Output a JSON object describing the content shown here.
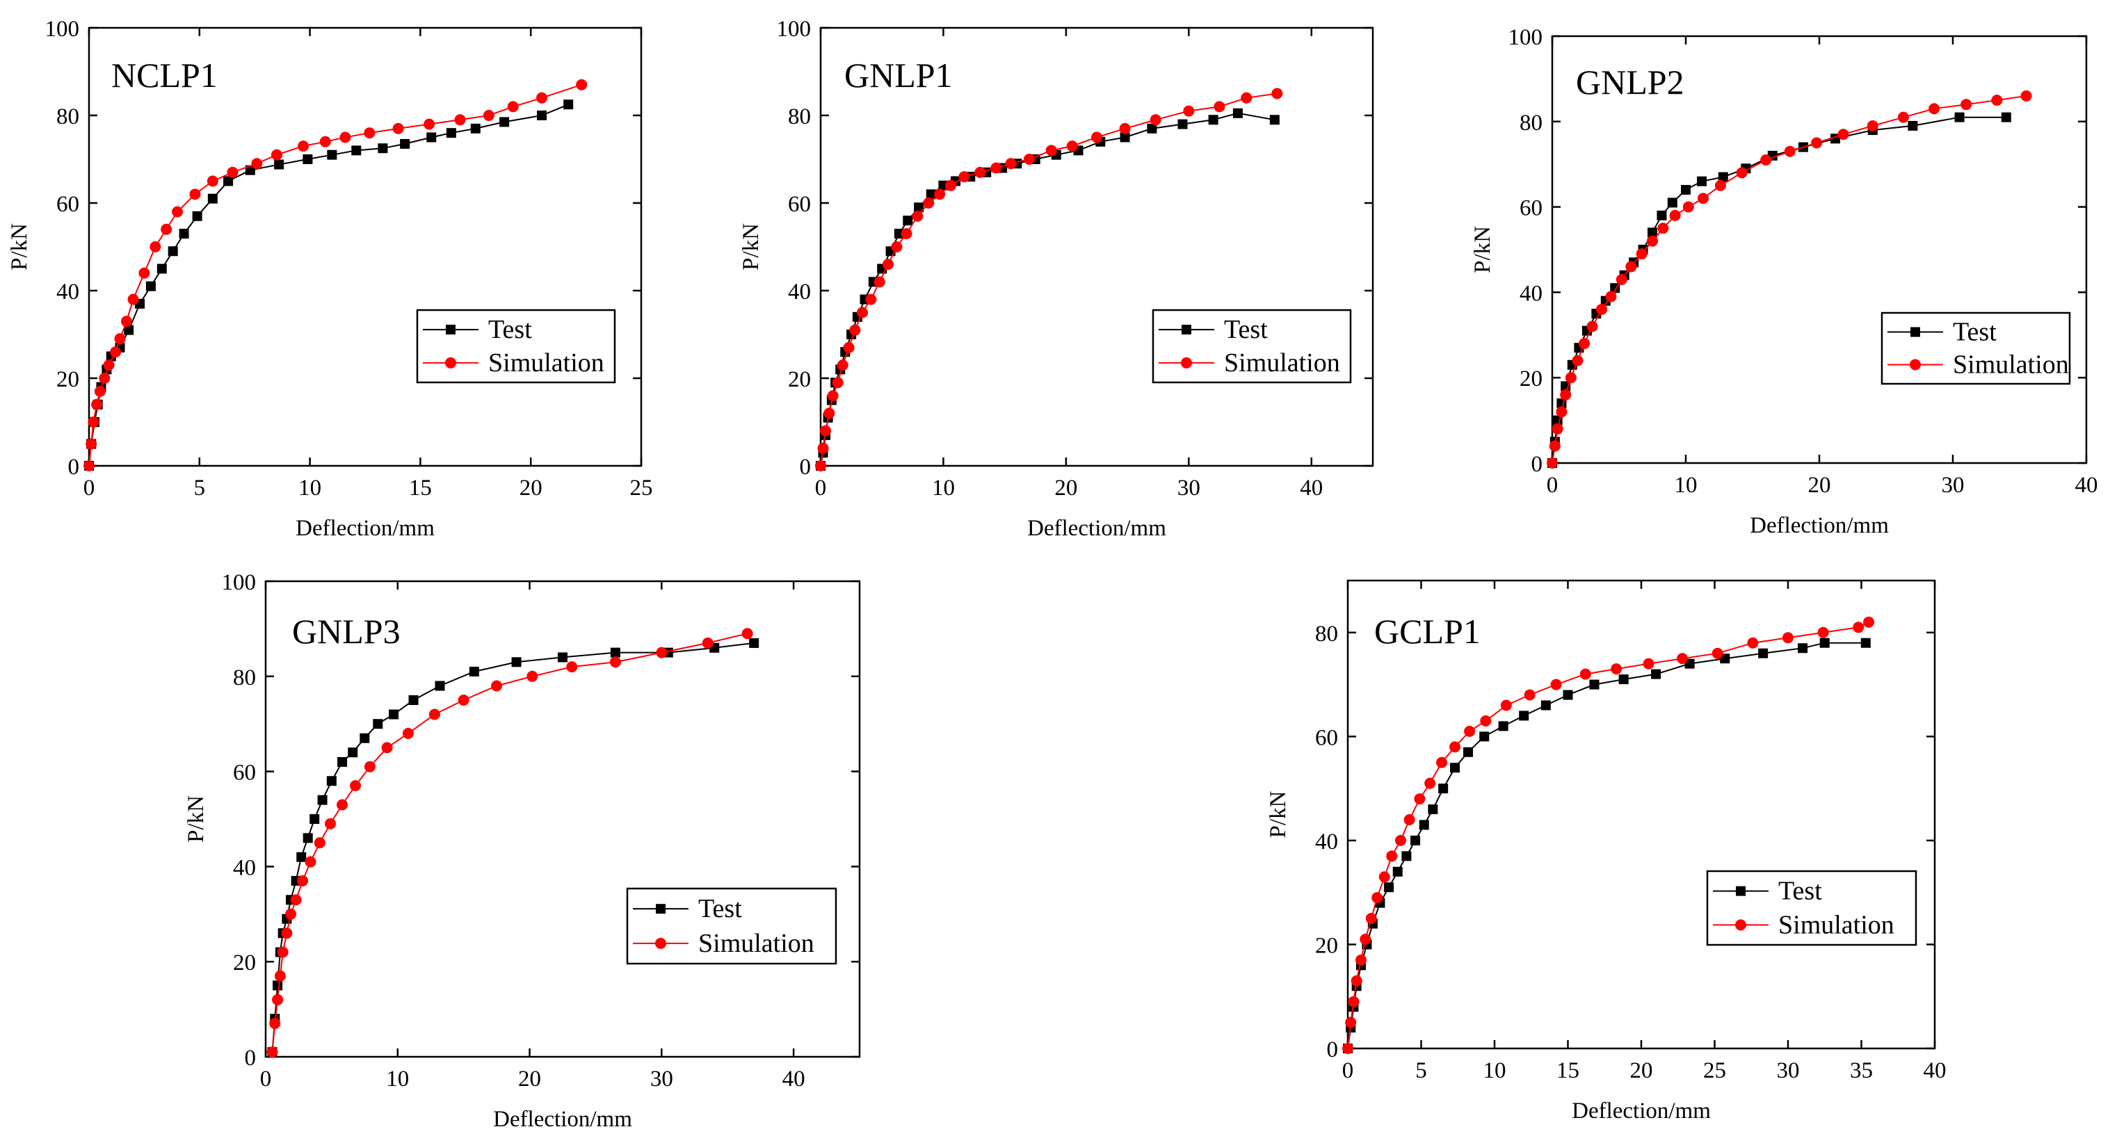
{
  "colors": {
    "test": "#000000",
    "simulation": "#ff0000",
    "axis": "#000000",
    "background": "#ffffff"
  },
  "chart_data": [
    {
      "type": "line",
      "title": "NCLP1",
      "xlabel": "Deflection/mm",
      "ylabel": "P/kN",
      "xlim": [
        0,
        25
      ],
      "ylim": [
        0,
        100
      ],
      "xticks": [
        0,
        5,
        10,
        15,
        20,
        25
      ],
      "yticks": [
        0,
        20,
        40,
        60,
        80,
        100
      ],
      "xtick_labels": [
        "0",
        "5",
        "10",
        "15",
        "20",
        "25"
      ],
      "ytick_labels": [
        "0",
        "20",
        "40",
        "60",
        "80",
        "100"
      ],
      "legend": {
        "position": "lower-right",
        "entries": [
          "Test",
          "Simulation"
        ]
      },
      "series": [
        {
          "name": "Test",
          "marker": "square",
          "color": "#000000",
          "x": [
            0,
            0.1,
            0.25,
            0.4,
            0.55,
            0.8,
            1.0,
            1.4,
            1.8,
            2.3,
            2.8,
            3.3,
            3.8,
            4.3,
            4.9,
            5.6,
            6.3,
            7.3,
            8.6,
            9.9,
            11.0,
            12.1,
            13.3,
            14.3,
            15.5,
            16.4,
            17.5,
            18.8,
            20.5,
            21.7
          ],
          "y": [
            0,
            5,
            10,
            14,
            18,
            22,
            25,
            27,
            31,
            37,
            41,
            45,
            49,
            53,
            57,
            61,
            65,
            67.5,
            68.8,
            70,
            71,
            72,
            72.5,
            73.5,
            75,
            76,
            77,
            78.5,
            80,
            82.5
          ]
        },
        {
          "name": "Simulation",
          "marker": "circle",
          "color": "#ff0000",
          "x": [
            0,
            0.1,
            0.2,
            0.35,
            0.5,
            0.7,
            0.9,
            1.2,
            1.4,
            1.7,
            2.0,
            2.5,
            3.0,
            3.5,
            4.0,
            4.8,
            5.6,
            6.5,
            7.6,
            8.5,
            9.7,
            10.7,
            11.6,
            12.7,
            14.0,
            15.4,
            16.8,
            18.1,
            19.2,
            20.5,
            22.3
          ],
          "y": [
            0,
            5,
            10,
            14,
            17,
            20,
            23,
            26,
            29,
            33,
            38,
            44,
            50,
            54,
            58,
            62,
            65,
            67,
            69,
            71,
            73,
            74,
            75,
            76,
            77,
            78,
            79,
            80,
            82,
            84,
            87
          ]
        }
      ]
    },
    {
      "type": "line",
      "title": "GNLP1",
      "xlabel": "Deflection/mm",
      "ylabel": "P/kN",
      "xlim": [
        0,
        45
      ],
      "ylim": [
        0,
        100
      ],
      "xticks": [
        0,
        10,
        20,
        30,
        40
      ],
      "yticks": [
        0,
        20,
        40,
        60,
        80,
        100
      ],
      "xtick_labels": [
        "0",
        "10",
        "20",
        "30",
        "40"
      ],
      "ytick_labels": [
        "0",
        "20",
        "40",
        "60",
        "80",
        "100"
      ],
      "legend": {
        "position": "lower-right",
        "entries": [
          "Test",
          "Simulation"
        ]
      },
      "series": [
        {
          "name": "Test",
          "marker": "square",
          "color": "#000000",
          "x": [
            0,
            0.2,
            0.4,
            0.6,
            0.9,
            1.2,
            1.6,
            2.0,
            2.5,
            3.0,
            3.6,
            4.3,
            5.0,
            5.7,
            6.4,
            7.1,
            8.0,
            9.0,
            10.0,
            11.0,
            12.2,
            13.5,
            14.8,
            16.0,
            17.5,
            19.2,
            21.0,
            22.8,
            24.8,
            27.0,
            29.5,
            32.0,
            34.0,
            37.0
          ],
          "y": [
            0,
            3,
            7,
            11,
            15,
            19,
            22,
            26,
            30,
            34,
            38,
            42,
            45,
            49,
            53,
            56,
            59,
            62,
            64,
            65,
            66,
            67,
            68,
            69,
            70,
            71,
            72,
            74,
            75,
            77,
            78,
            79,
            80.5,
            79
          ]
        },
        {
          "name": "Simulation",
          "marker": "circle",
          "color": "#ff0000",
          "x": [
            0,
            0.2,
            0.4,
            0.7,
            1.0,
            1.4,
            1.8,
            2.3,
            2.8,
            3.4,
            4.1,
            4.8,
            5.5,
            6.2,
            7.0,
            7.9,
            8.8,
            9.7,
            10.6,
            11.7,
            13.0,
            14.3,
            15.5,
            17.0,
            18.8,
            20.5,
            22.5,
            24.8,
            27.3,
            30.0,
            32.5,
            34.7,
            37.2
          ],
          "y": [
            0,
            4,
            8,
            12,
            16,
            19,
            23,
            27,
            31,
            35,
            38,
            42,
            46,
            50,
            53,
            57,
            60,
            62,
            64,
            66,
            67,
            68,
            69,
            70,
            72,
            73,
            75,
            77,
            79,
            81,
            82,
            84,
            85
          ]
        }
      ]
    },
    {
      "type": "line",
      "title": "GNLP2",
      "xlabel": "Deflection/mm",
      "ylabel": "P/kN",
      "xlim": [
        0,
        40
      ],
      "ylim": [
        0,
        100
      ],
      "xticks": [
        0,
        10,
        20,
        30,
        40
      ],
      "yticks": [
        0,
        20,
        40,
        60,
        80,
        100
      ],
      "xtick_labels": [
        "0",
        "10",
        "20",
        "30",
        "40"
      ],
      "ytick_labels": [
        "0",
        "20",
        "40",
        "60",
        "80",
        "100"
      ],
      "legend": {
        "position": "lower-right",
        "entries": [
          "Test",
          "Simulation"
        ]
      },
      "series": [
        {
          "name": "Test",
          "marker": "square",
          "color": "#000000",
          "x": [
            0,
            0.2,
            0.4,
            0.7,
            1.0,
            1.5,
            2.0,
            2.6,
            3.3,
            4.0,
            4.7,
            5.4,
            6.1,
            6.8,
            7.5,
            8.2,
            9.0,
            10.0,
            11.2,
            12.8,
            14.5,
            16.5,
            18.8,
            21.2,
            24.0,
            27.0,
            30.5,
            34.0
          ],
          "y": [
            0,
            5,
            10,
            14,
            18,
            23,
            27,
            31,
            35,
            38,
            41,
            44,
            47,
            50,
            54,
            58,
            61,
            64,
            66,
            67,
            69,
            72,
            74,
            76,
            78,
            79,
            81,
            81
          ]
        },
        {
          "name": "Simulation",
          "marker": "circle",
          "color": "#ff0000",
          "x": [
            0,
            0.2,
            0.4,
            0.7,
            1.0,
            1.4,
            1.9,
            2.4,
            3.0,
            3.7,
            4.4,
            5.2,
            5.9,
            6.7,
            7.5,
            8.3,
            9.2,
            10.2,
            11.3,
            12.6,
            14.2,
            16.0,
            17.8,
            19.8,
            21.8,
            24.0,
            26.3,
            28.6,
            31.0,
            33.3,
            35.5
          ],
          "y": [
            0,
            4,
            8,
            12,
            16,
            20,
            24,
            28,
            32,
            36,
            39,
            43,
            46,
            49,
            52,
            55,
            58,
            60,
            62,
            65,
            68,
            71,
            73,
            75,
            77,
            79,
            81,
            83,
            84,
            85,
            86
          ]
        }
      ]
    },
    {
      "type": "line",
      "title": "GNLP3",
      "xlabel": "Deflection/mm",
      "ylabel": "P/kN",
      "xlim": [
        0,
        45
      ],
      "ylim": [
        0,
        100
      ],
      "xticks": [
        0,
        10,
        20,
        30,
        40
      ],
      "yticks": [
        0,
        20,
        40,
        60,
        80,
        100
      ],
      "xtick_labels": [
        "0",
        "10",
        "20",
        "30",
        "40"
      ],
      "ytick_labels": [
        "0",
        "20",
        "40",
        "60",
        "80",
        "100"
      ],
      "legend": {
        "position": "lower-right",
        "entries": [
          "Test",
          "Simulation"
        ]
      },
      "series": [
        {
          "name": "Test",
          "marker": "square",
          "color": "#000000",
          "x": [
            0.5,
            0.7,
            0.9,
            1.1,
            1.3,
            1.6,
            1.9,
            2.3,
            2.7,
            3.2,
            3.7,
            4.3,
            5.0,
            5.8,
            6.6,
            7.5,
            8.5,
            9.7,
            11.2,
            13.2,
            15.8,
            19.0,
            22.5,
            26.5,
            30.5,
            34.0,
            37.0
          ],
          "y": [
            1,
            8,
            15,
            22,
            26,
            29,
            33,
            37,
            42,
            46,
            50,
            54,
            58,
            62,
            64,
            67,
            70,
            72,
            75,
            78,
            81,
            83,
            84,
            85,
            85,
            86,
            87
          ]
        },
        {
          "name": "Simulation",
          "marker": "circle",
          "color": "#ff0000",
          "x": [
            0.5,
            0.7,
            0.9,
            1.1,
            1.3,
            1.6,
            1.9,
            2.3,
            2.8,
            3.4,
            4.1,
            4.9,
            5.8,
            6.8,
            7.9,
            9.2,
            10.8,
            12.8,
            15.0,
            17.5,
            20.2,
            23.2,
            26.5,
            30.0,
            33.5,
            36.5
          ],
          "y": [
            1,
            7,
            12,
            17,
            22,
            26,
            30,
            33,
            37,
            41,
            45,
            49,
            53,
            57,
            61,
            65,
            68,
            72,
            75,
            78,
            80,
            82,
            83,
            85,
            87,
            89
          ]
        }
      ]
    },
    {
      "type": "line",
      "title": "GCLP1",
      "xlabel": "Deflection/mm",
      "ylabel": "P/kN",
      "xlim": [
        0,
        40
      ],
      "ylim": [
        0,
        90
      ],
      "xticks": [
        0,
        5,
        10,
        15,
        20,
        25,
        30,
        35,
        40
      ],
      "yticks": [
        0,
        20,
        40,
        60,
        80
      ],
      "xtick_labels": [
        "0",
        "5",
        "10",
        "15",
        "20",
        "25",
        "30",
        "35",
        "40"
      ],
      "ytick_labels": [
        "0",
        "20",
        "40",
        "60",
        "80"
      ],
      "legend": {
        "position": "lower-right",
        "entries": [
          "Test",
          "Simulation"
        ]
      },
      "series": [
        {
          "name": "Test",
          "marker": "square",
          "color": "#000000",
          "x": [
            0,
            0.2,
            0.4,
            0.6,
            0.9,
            1.3,
            1.7,
            2.2,
            2.8,
            3.4,
            4.0,
            4.6,
            5.2,
            5.8,
            6.5,
            7.3,
            8.2,
            9.3,
            10.6,
            12.0,
            13.5,
            15.0,
            16.8,
            18.8,
            21.0,
            23.3,
            25.7,
            28.3,
            31.0,
            32.5,
            35.3
          ],
          "y": [
            0,
            4,
            8,
            12,
            16,
            20,
            24,
            28,
            31,
            34,
            37,
            40,
            43,
            46,
            50,
            54,
            57,
            60,
            62,
            64,
            66,
            68,
            70,
            71,
            72,
            74,
            75,
            76,
            77,
            78,
            78
          ]
        },
        {
          "name": "Simulation",
          "marker": "circle",
          "color": "#ff0000",
          "x": [
            0,
            0.2,
            0.4,
            0.6,
            0.9,
            1.2,
            1.6,
            2.0,
            2.5,
            3.0,
            3.6,
            4.2,
            4.9,
            5.6,
            6.4,
            7.3,
            8.3,
            9.4,
            10.8,
            12.4,
            14.2,
            16.2,
            18.3,
            20.5,
            22.8,
            25.2,
            27.6,
            30.0,
            32.4,
            34.8,
            35.5
          ],
          "y": [
            0,
            5,
            9,
            13,
            17,
            21,
            25,
            29,
            33,
            37,
            40,
            44,
            48,
            51,
            55,
            58,
            61,
            63,
            66,
            68,
            70,
            72,
            73,
            74,
            75,
            76,
            78,
            79,
            80,
            81,
            82
          ]
        }
      ]
    }
  ]
}
